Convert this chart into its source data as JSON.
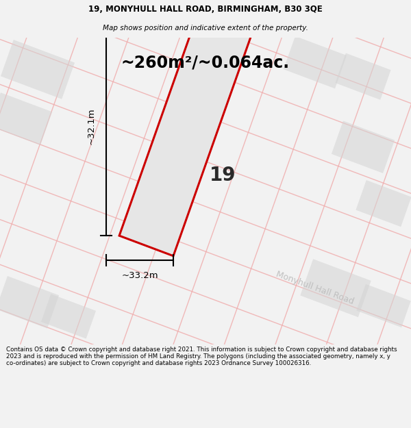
{
  "title_line1": "19, MONYHULL HALL ROAD, BIRMINGHAM, B30 3QE",
  "title_line2": "Map shows position and indicative extent of the property.",
  "area_text": "~260m²/~0.064ac.",
  "number_label": "19",
  "dim_width": "~33.2m",
  "dim_height": "~32.1m",
  "road_label": "Monyhull Hall Road",
  "footer_text": "Contains OS data © Crown copyright and database right 2021. This information is subject to Crown copyright and database rights 2023 and is reproduced with the permission of HM Land Registry. The polygons (including the associated geometry, namely x, y co-ordinates) are subject to Crown copyright and database rights 2023 Ordnance Survey 100026316.",
  "bg_color": "#f2f2f2",
  "map_bg_color": "#ffffff",
  "plot_fill_color": "#e6e6e6",
  "plot_edge_color": "#cc0000",
  "road_line_color": "#f0aaaa",
  "road_block_color": "#d4d4d4",
  "title_color": "#000000",
  "footer_color": "#000000"
}
